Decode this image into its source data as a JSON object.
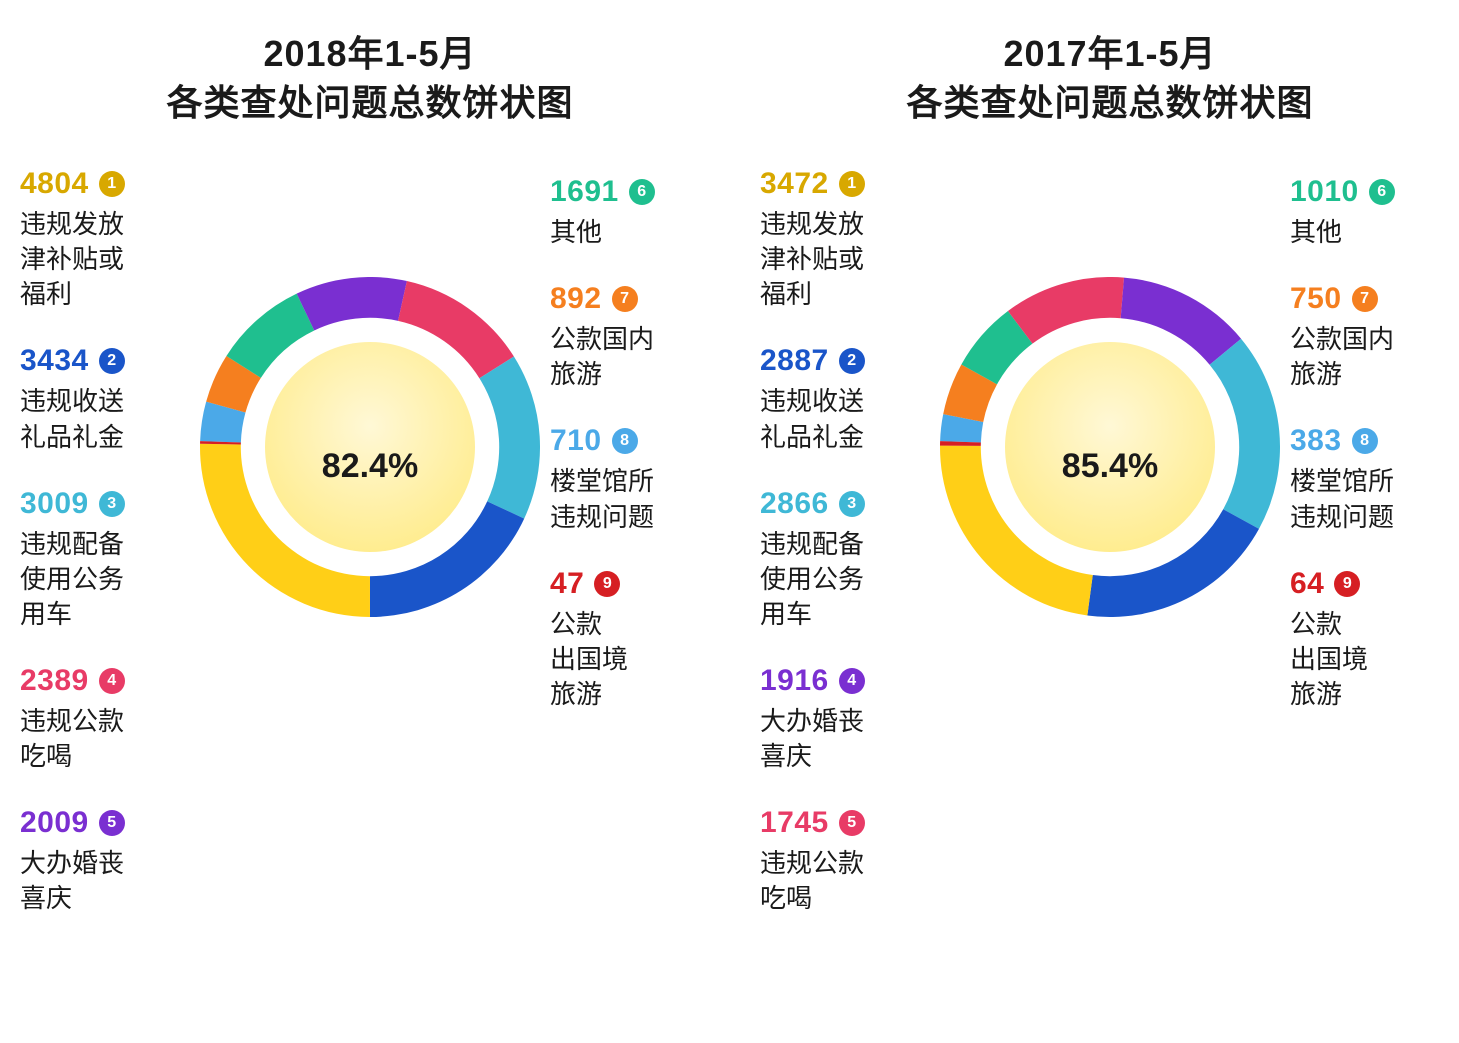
{
  "panels": [
    {
      "title_line1": "2018年1-5月",
      "title_line2": "各类查处问题总数饼状图",
      "center_percent": "82.4%",
      "inner_gradient_from": "#ffe97a",
      "inner_gradient_to": "#fff8d6",
      "background": "#ffffff",
      "donut_size": 340,
      "ring_thickness_ratio": 0.24,
      "left_items": [
        {
          "value": "4804",
          "label": "违规发放\n津补贴或\n福利",
          "color": "#d8a800",
          "rank": "1"
        },
        {
          "value": "3434",
          "label": "违规收送\n礼品礼金",
          "color": "#1a55c9",
          "rank": "2"
        },
        {
          "value": "3009",
          "label": "违规配备\n使用公务\n用车",
          "color": "#3fb8d6",
          "rank": "3"
        },
        {
          "value": "2389",
          "label": "违规公款\n吃喝",
          "color": "#e83b66",
          "rank": "4"
        },
        {
          "value": "2009",
          "label": "大办婚丧\n喜庆",
          "color": "#7a2fd1",
          "rank": "5"
        }
      ],
      "right_items": [
        {
          "value": "1691",
          "label": "其他",
          "color": "#1fbf8f",
          "rank": "6"
        },
        {
          "value": "892",
          "label": "公款国内\n旅游",
          "color": "#f57f1f",
          "rank": "7"
        },
        {
          "value": "710",
          "label": "楼堂馆所\n违规问题",
          "color": "#4ba9e8",
          "rank": "8"
        },
        {
          "value": "47",
          "label": "公款\n出国境\n旅游",
          "color": "#d61f23",
          "rank": "9"
        }
      ],
      "slices": [
        {
          "value": 710,
          "color": "#4ba9e8"
        },
        {
          "value": 892,
          "color": "#f57f1f"
        },
        {
          "value": 1691,
          "color": "#1fbf8f"
        },
        {
          "value": 2009,
          "color": "#7a2fd1"
        },
        {
          "value": 2389,
          "color": "#e83b66"
        },
        {
          "value": 3009,
          "color": "#3fb8d6"
        },
        {
          "value": 3434,
          "color": "#1a55c9"
        },
        {
          "value": 4804,
          "color": "#ffcf17"
        },
        {
          "value": 47,
          "color": "#d61f23"
        }
      ],
      "start_angle_deg": -88
    },
    {
      "title_line1": "2017年1-5月",
      "title_line2": "各类查处问题总数饼状图",
      "center_percent": "85.4%",
      "inner_gradient_from": "#ffe97a",
      "inner_gradient_to": "#fff8d6",
      "background": "#ffffff",
      "donut_size": 340,
      "ring_thickness_ratio": 0.24,
      "left_items": [
        {
          "value": "3472",
          "label": "违规发放\n津补贴或\n福利",
          "color": "#d8a800",
          "rank": "1"
        },
        {
          "value": "2887",
          "label": "违规收送\n礼品礼金",
          "color": "#1a55c9",
          "rank": "2"
        },
        {
          "value": "2866",
          "label": "违规配备\n使用公务\n用车",
          "color": "#3fb8d6",
          "rank": "3"
        },
        {
          "value": "1916",
          "label": "大办婚丧\n喜庆",
          "color": "#7a2fd1",
          "rank": "4"
        },
        {
          "value": "1745",
          "label": "违规公款\n吃喝",
          "color": "#e83b66",
          "rank": "5"
        }
      ],
      "right_items": [
        {
          "value": "1010",
          "label": "其他",
          "color": "#1fbf8f",
          "rank": "6"
        },
        {
          "value": "750",
          "label": "公款国内\n旅游",
          "color": "#f57f1f",
          "rank": "7"
        },
        {
          "value": "383",
          "label": "楼堂馆所\n违规问题",
          "color": "#4ba9e8",
          "rank": "8"
        },
        {
          "value": "64",
          "label": "公款\n出国境\n旅游",
          "color": "#d61f23",
          "rank": "9"
        }
      ],
      "slices": [
        {
          "value": 383,
          "color": "#4ba9e8"
        },
        {
          "value": 750,
          "color": "#f57f1f"
        },
        {
          "value": 1010,
          "color": "#1fbf8f"
        },
        {
          "value": 1745,
          "color": "#e83b66"
        },
        {
          "value": 1916,
          "color": "#7a2fd1"
        },
        {
          "value": 2866,
          "color": "#3fb8d6"
        },
        {
          "value": 2887,
          "color": "#1a55c9"
        },
        {
          "value": 3472,
          "color": "#ffcf17"
        },
        {
          "value": 64,
          "color": "#d61f23"
        }
      ],
      "start_angle_deg": -88
    }
  ]
}
